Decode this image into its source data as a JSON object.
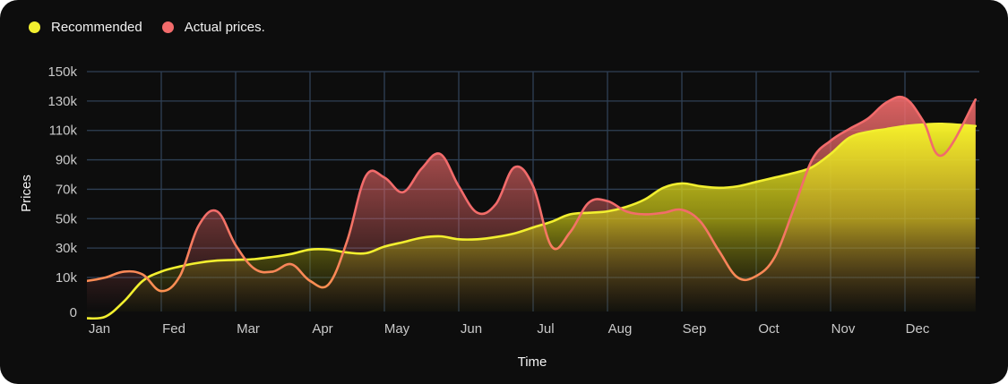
{
  "colors": {
    "background": "#0d0d0d",
    "grid": "#2f4055",
    "recommended": "#f2ef2f",
    "actual": "#f26b6b"
  },
  "chart_data": {
    "type": "area",
    "xlabel": "Time",
    "ylabel": "Prices",
    "categories": [
      "Jan",
      "Fed",
      "Mar",
      "Apr",
      "May",
      "Jun",
      "Jul",
      "Aug",
      "Sep",
      "Oct",
      "Nov",
      "Dec"
    ],
    "yticks": [
      "0",
      "10k",
      "30k",
      "50k",
      "70k",
      "90k",
      "110k",
      "130k",
      "150k"
    ],
    "ylim": [
      0,
      150000
    ],
    "grid": true,
    "legend_position": "top-left",
    "series": [
      {
        "name": "Recommended",
        "color": "#f2ef2f",
        "x": [
          0,
          0.25,
          0.5,
          0.75,
          1,
          1.25,
          1.5,
          1.75,
          2,
          2.25,
          2.5,
          2.75,
          3,
          3.25,
          3.5,
          3.75,
          4,
          4.25,
          4.5,
          4.75,
          5,
          5.25,
          5.5,
          5.75,
          6,
          6.25,
          6.5,
          6.75,
          7,
          7.25,
          7.5,
          7.75,
          8,
          8.25,
          8.5,
          8.75,
          9,
          9.25,
          9.5,
          9.75,
          10,
          10.25,
          10.5,
          10.75,
          11,
          11.25,
          11.5,
          11.95
        ],
        "values": [
          -2000,
          -1500,
          3000,
          9000,
          14000,
          17500,
          20000,
          21500,
          22000,
          22500,
          24000,
          26000,
          29000,
          29000,
          27000,
          26500,
          31000,
          34000,
          37000,
          38000,
          36000,
          36000,
          37500,
          40000,
          44000,
          48000,
          53000,
          54000,
          55000,
          58000,
          63000,
          71000,
          74000,
          72000,
          71000,
          72000,
          75000,
          78000,
          81000,
          85000,
          94000,
          105000,
          109000,
          111000,
          113000,
          114000,
          114500,
          113000
        ]
      },
      {
        "name": "Actual prices.",
        "color": "#f26b6b",
        "x": [
          -0.15,
          0,
          0.25,
          0.5,
          0.75,
          1,
          1.25,
          1.5,
          1.75,
          2,
          2.25,
          2.5,
          2.75,
          3,
          3.25,
          3.5,
          3.75,
          4,
          4.25,
          4.5,
          4.75,
          5,
          5.25,
          5.5,
          5.75,
          6,
          6.25,
          6.5,
          6.75,
          7,
          7.25,
          7.5,
          7.75,
          8,
          8.25,
          8.5,
          8.75,
          9,
          9.25,
          9.5,
          9.75,
          10,
          10.25,
          10.5,
          10.75,
          11,
          11.25,
          11.5,
          11.95
        ],
        "values": [
          9000,
          9000,
          10000,
          14000,
          12000,
          6000,
          11000,
          45000,
          55000,
          32000,
          16000,
          14000,
          19000,
          9000,
          8000,
          35000,
          79000,
          78000,
          68000,
          84000,
          94000,
          72000,
          54000,
          60000,
          85000,
          72000,
          31000,
          41000,
          61000,
          62000,
          55000,
          53000,
          54000,
          56000,
          48000,
          28000,
          10000,
          11000,
          24000,
          56000,
          90000,
          103000,
          111000,
          118000,
          129000,
          132000,
          116000,
          93000,
          131000
        ]
      }
    ]
  }
}
